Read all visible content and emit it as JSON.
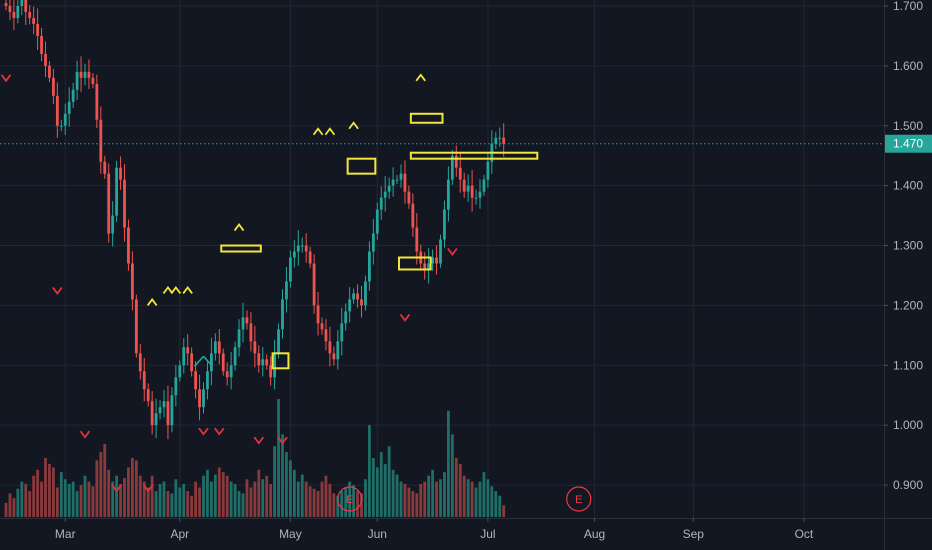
{
  "chart_data": {
    "type": "candlestick",
    "ylim": [
      0.845,
      1.71
    ],
    "grid": true,
    "colors": {
      "background": "#131722",
      "grid": "#232733",
      "up": "#26a69a",
      "down": "#ef5350",
      "volume_up": "#1f6f68",
      "volume_down": "#8a3a3d",
      "last_price": "#26a69a",
      "box": "#f2e63b",
      "marker_up": "#f2e63b",
      "marker_down": "#e2313f",
      "earnings": "#f23645",
      "axis_text": "#b2b5be"
    },
    "y_ticks": [
      {
        "value": 0.9,
        "label": "0.900"
      },
      {
        "value": 1.0,
        "label": "1.000"
      },
      {
        "value": 1.1,
        "label": "1.100"
      },
      {
        "value": 1.2,
        "label": "1.200"
      },
      {
        "value": 1.3,
        "label": "1.300"
      },
      {
        "value": 1.4,
        "label": "1.400"
      },
      {
        "value": 1.5,
        "label": "1.500"
      },
      {
        "value": 1.6,
        "label": "1.600"
      },
      {
        "value": 1.7,
        "label": "1.700"
      }
    ],
    "x_ticks": [
      {
        "bar": 15,
        "label": "Mar"
      },
      {
        "bar": 44,
        "label": "Apr"
      },
      {
        "bar": 72,
        "label": "May"
      },
      {
        "bar": 94,
        "label": "Jun"
      },
      {
        "bar": 122,
        "label": "Jul"
      },
      {
        "bar": 149,
        "label": "Aug"
      },
      {
        "bar": 174,
        "label": "Sep"
      },
      {
        "bar": 202,
        "label": "Oct"
      }
    ],
    "last_price": {
      "value": 1.47,
      "label": "1.470"
    },
    "close": [
      1.7,
      1.69,
      1.68,
      1.7,
      1.71,
      1.69,
      1.68,
      1.67,
      1.65,
      1.62,
      1.6,
      1.58,
      1.55,
      1.5,
      1.5,
      1.52,
      1.54,
      1.56,
      1.59,
      1.58,
      1.59,
      1.58,
      1.57,
      1.51,
      1.44,
      1.42,
      1.32,
      1.35,
      1.43,
      1.41,
      1.33,
      1.27,
      1.21,
      1.12,
      1.09,
      1.06,
      1.04,
      1.0,
      1.02,
      1.03,
      1.04,
      1.0,
      1.05,
      1.08,
      1.1,
      1.13,
      1.12,
      1.09,
      1.06,
      1.03,
      1.06,
      1.09,
      1.12,
      1.14,
      1.12,
      1.09,
      1.08,
      1.1,
      1.13,
      1.16,
      1.18,
      1.17,
      1.14,
      1.12,
      1.1,
      1.11,
      1.1,
      1.08,
      1.12,
      1.16,
      1.21,
      1.24,
      1.28,
      1.29,
      1.3,
      1.3,
      1.29,
      1.27,
      1.2,
      1.17,
      1.16,
      1.14,
      1.12,
      1.11,
      1.14,
      1.17,
      1.19,
      1.21,
      1.22,
      1.21,
      1.2,
      1.24,
      1.29,
      1.32,
      1.36,
      1.38,
      1.39,
      1.4,
      1.41,
      1.41,
      1.42,
      1.39,
      1.37,
      1.33,
      1.29,
      1.27,
      1.26,
      1.27,
      1.28,
      1.27,
      1.31,
      1.36,
      1.41,
      1.45,
      1.43,
      1.41,
      1.39,
      1.4,
      1.38,
      1.38,
      1.39,
      1.41,
      1.44,
      1.47,
      1.48,
      1.48,
      1.47
    ],
    "volume": [
      0.12,
      0.2,
      0.16,
      0.24,
      0.3,
      0.28,
      0.22,
      0.35,
      0.4,
      0.3,
      0.5,
      0.45,
      0.42,
      0.25,
      0.38,
      0.32,
      0.28,
      0.3,
      0.22,
      0.27,
      0.35,
      0.3,
      0.26,
      0.48,
      0.55,
      0.62,
      0.4,
      0.3,
      0.35,
      0.28,
      0.33,
      0.42,
      0.5,
      0.48,
      0.35,
      0.3,
      0.25,
      0.35,
      0.22,
      0.28,
      0.3,
      0.22,
      0.2,
      0.32,
      0.25,
      0.28,
      0.22,
      0.18,
      0.3,
      0.25,
      0.35,
      0.4,
      0.3,
      0.36,
      0.42,
      0.38,
      0.35,
      0.3,
      0.28,
      0.22,
      0.2,
      0.32,
      0.25,
      0.3,
      0.4,
      0.32,
      0.35,
      0.28,
      0.6,
      1.0,
      0.7,
      0.55,
      0.48,
      0.4,
      0.3,
      0.36,
      0.3,
      0.26,
      0.24,
      0.22,
      0.3,
      0.35,
      0.28,
      0.2,
      0.18,
      0.22,
      0.25,
      0.3,
      0.27,
      0.22,
      0.2,
      0.32,
      0.78,
      0.5,
      0.42,
      0.55,
      0.45,
      0.6,
      0.4,
      0.36,
      0.3,
      0.28,
      0.25,
      0.22,
      0.2,
      0.28,
      0.3,
      0.35,
      0.4,
      0.3,
      0.32,
      0.38,
      0.9,
      0.7,
      0.5,
      0.45,
      0.35,
      0.32,
      0.3,
      0.25,
      0.3,
      0.38,
      0.32,
      0.26,
      0.22,
      0.18,
      0.1
    ],
    "up_markers": [
      [
        37,
        1.205
      ],
      [
        41,
        1.225
      ],
      [
        43,
        1.225
      ],
      [
        46,
        1.225
      ],
      [
        59,
        1.33
      ],
      [
        79,
        1.49
      ],
      [
        82,
        1.49
      ],
      [
        88,
        1.5
      ],
      [
        105,
        1.58
      ]
    ],
    "down_markers": [
      [
        0,
        1.58
      ],
      [
        13,
        1.225
      ],
      [
        20,
        0.985
      ],
      [
        28,
        0.895
      ],
      [
        36,
        0.895
      ],
      [
        50,
        0.99
      ],
      [
        54,
        0.99
      ],
      [
        64,
        0.975
      ],
      [
        70,
        0.975
      ],
      [
        101,
        1.18
      ],
      [
        113,
        1.29
      ]
    ],
    "boxes": [
      [
        55,
        64,
        1.29,
        1.3
      ],
      [
        68,
        71,
        1.095,
        1.12
      ],
      [
        87,
        93,
        1.42,
        1.445
      ],
      [
        100,
        107,
        1.26,
        1.28
      ],
      [
        103,
        110,
        1.505,
        1.52
      ],
      [
        103,
        134,
        1.445,
        1.455
      ]
    ],
    "earnings_markers": [
      {
        "bar": 87,
        "label": "E"
      },
      {
        "bar": 145,
        "label": "E"
      }
    ],
    "crossings": [
      [
        50,
        1.115
      ]
    ]
  }
}
